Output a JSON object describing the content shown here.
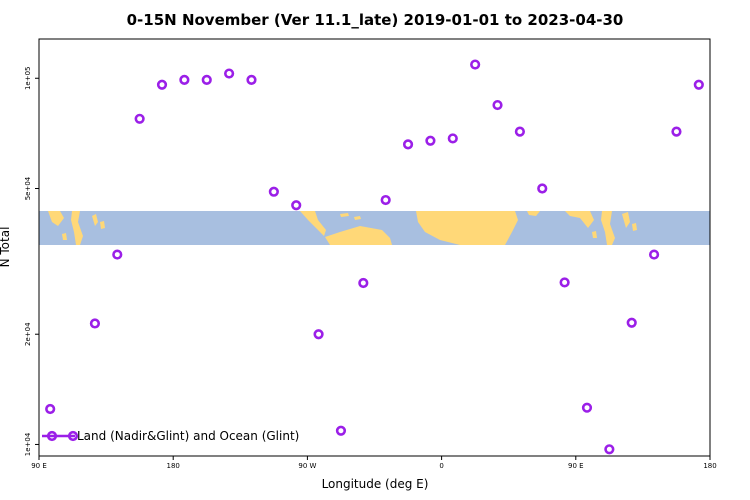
{
  "chart_data": {
    "type": "scatter",
    "title": "0-15N November (Ver 11.1_late)   2019-01-01 to 2023-04-30",
    "xlabel": "Longitude (deg E)",
    "ylabel": "N Total",
    "y_scale": "log",
    "x_ticks": [
      {
        "value": 90,
        "label": "90 E"
      },
      {
        "value": 180,
        "label": "180"
      },
      {
        "value": 270,
        "label": "90 W"
      },
      {
        "value": 360,
        "label": "0"
      },
      {
        "value": 450,
        "label": "90 E"
      },
      {
        "value": 540,
        "label": "180"
      }
    ],
    "y_ticks": [
      {
        "value": 10000,
        "label": "1e+04"
      },
      {
        "value": 20000,
        "label": "2e+04"
      },
      {
        "value": 50000,
        "label": "5e+04"
      },
      {
        "value": 100000,
        "label": "1e+05"
      }
    ],
    "xlim": [
      90,
      540
    ],
    "ylim": [
      9300,
      128000
    ],
    "grid": false,
    "legend_position": "bottom-left",
    "series": [
      {
        "name": "Land (Nadir&Glint) and Ocean (Glint)",
        "color": "#9b1fe8",
        "x": [
          97.5,
          127.5,
          142.5,
          157.5,
          172.5,
          187.5,
          202.5,
          217.5,
          232.5,
          247.5,
          262.5,
          277.5,
          292.5,
          307.5,
          322.5,
          337.5,
          352.5,
          367.5,
          382.5,
          397.5,
          412.5,
          427.5,
          442.5,
          457.5,
          472.5,
          487.5,
          502.5,
          517.5,
          532.5
        ],
        "y": [
          12500,
          21400,
          33000,
          77500,
          96000,
          99000,
          99000,
          103000,
          99000,
          49000,
          45000,
          20000,
          10900,
          27600,
          46500,
          66000,
          67500,
          68500,
          109000,
          84500,
          71500,
          50000,
          27700,
          12600,
          9700,
          21500,
          33000,
          71500,
          96000
        ]
      }
    ],
    "background_map": {
      "latitude_band": "0-15N",
      "ocean_color": "#a8bfe0",
      "land_color": "#ffd878"
    }
  }
}
